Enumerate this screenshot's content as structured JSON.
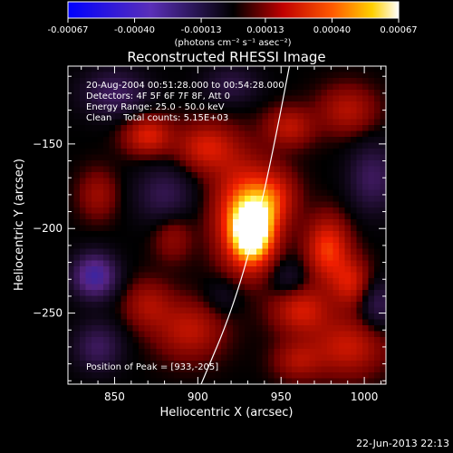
{
  "colorbar": {
    "tick_labels": [
      "-0.00067",
      "-0.00040",
      "-0.00013",
      "0.00013",
      "0.00040",
      "0.00067"
    ],
    "units_label": "(photons cm⁻² s⁻¹ asec⁻²)"
  },
  "chart_data": {
    "type": "heatmap",
    "title": "Reconstructed RHESSI Image",
    "xlabel": "Heliocentric X (arcsec)",
    "ylabel": "Heliocentric Y (arcsec)",
    "xlim": [
      822,
      1013
    ],
    "ylim": [
      -292,
      -104
    ],
    "x_ticks": [
      850,
      900,
      950,
      1000
    ],
    "y_ticks": [
      -150,
      -200,
      -250
    ],
    "zlim": [
      -0.00067,
      0.00067
    ],
    "colormap": "RHESSI red temperature (blue-purple negative, red-yellow-white positive)",
    "info_lines": [
      "20-Aug-2004 00:51:28.000 to 00:54:28.000",
      "Detectors: 4F 5F 6F 7F 8F, Att 0",
      "Energy Range: 25.0 - 50.0 keV",
      "Clean    Total counts: 5.15E+03"
    ],
    "peak_text": "Position of Peak = [933,-205]",
    "peak": {
      "x": 933,
      "y": -205
    },
    "sources": [
      {
        "x": 933,
        "y": -203,
        "sx": 9,
        "sy": 13,
        "amp": 1.0
      },
      {
        "x": 926,
        "y": -190,
        "sx": 12,
        "sy": 22,
        "amp": 0.55
      },
      {
        "x": 945,
        "y": -182,
        "sx": 10,
        "sy": 12,
        "amp": 0.45
      },
      {
        "x": 978,
        "y": -212,
        "sx": 9,
        "sy": 13,
        "amp": 0.55
      },
      {
        "x": 992,
        "y": -232,
        "sx": 8,
        "sy": 10,
        "amp": 0.4
      },
      {
        "x": 962,
        "y": -248,
        "sx": 12,
        "sy": 10,
        "amp": 0.42
      },
      {
        "x": 990,
        "y": -270,
        "sx": 15,
        "sy": 12,
        "amp": 0.38
      },
      {
        "x": 870,
        "y": -145,
        "sx": 10,
        "sy": 8,
        "amp": 0.45
      },
      {
        "x": 905,
        "y": -152,
        "sx": 12,
        "sy": 10,
        "amp": 0.42
      },
      {
        "x": 955,
        "y": -140,
        "sx": 10,
        "sy": 8,
        "amp": 0.35
      },
      {
        "x": 990,
        "y": -130,
        "sx": 12,
        "sy": 10,
        "amp": 0.32
      },
      {
        "x": 895,
        "y": -260,
        "sx": 14,
        "sy": 12,
        "amp": 0.35
      },
      {
        "x": 870,
        "y": -245,
        "sx": 10,
        "sy": 10,
        "amp": 0.28
      },
      {
        "x": 840,
        "y": -180,
        "sx": 8,
        "sy": 10,
        "amp": 0.25
      },
      {
        "x": 885,
        "y": -205,
        "sx": 8,
        "sy": 10,
        "amp": 0.22
      },
      {
        "x": 960,
        "y": -278,
        "sx": 10,
        "sy": 8,
        "amp": 0.28
      },
      {
        "x": 838,
        "y": -228,
        "sx": 9,
        "sy": 9,
        "amp": -0.7
      },
      {
        "x": 850,
        "y": -120,
        "sx": 14,
        "sy": 10,
        "amp": -0.35
      },
      {
        "x": 880,
        "y": -180,
        "sx": 12,
        "sy": 12,
        "amp": -0.3
      },
      {
        "x": 1005,
        "y": -170,
        "sx": 10,
        "sy": 14,
        "amp": -0.35
      },
      {
        "x": 955,
        "y": -230,
        "sx": 8,
        "sy": 8,
        "amp": -0.2
      },
      {
        "x": 920,
        "y": -115,
        "sx": 12,
        "sy": 8,
        "amp": -0.25
      },
      {
        "x": 840,
        "y": -270,
        "sx": 10,
        "sy": 10,
        "amp": -0.35
      },
      {
        "x": 1008,
        "y": -245,
        "sx": 8,
        "sy": 10,
        "amp": -0.3
      },
      {
        "x": 915,
        "y": -240,
        "sx": 8,
        "sy": 8,
        "amp": -0.15
      }
    ],
    "limb_curve": [
      [
        902,
        -292
      ],
      [
        920,
        -250
      ],
      [
        935,
        -200
      ],
      [
        946,
        -150
      ],
      [
        955,
        -104
      ]
    ]
  },
  "footer": {
    "timestamp": "22-Jun-2013 22:13"
  }
}
